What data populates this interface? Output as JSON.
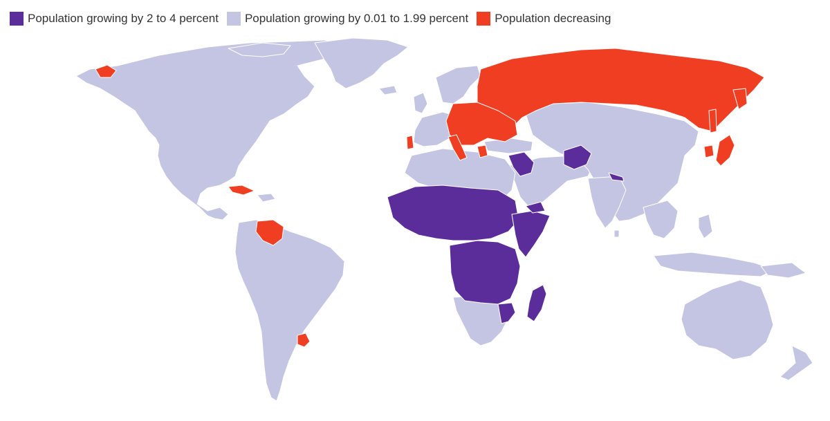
{
  "legend": {
    "items": [
      {
        "label": "Population growing by 2 to 4 percent",
        "category": "high_growth",
        "color": "#5b2d9a"
      },
      {
        "label": "Population growing by 0.01 to 1.99 percent",
        "category": "low_growth",
        "color": "#c4c5e3"
      },
      {
        "label": "Population decreasing",
        "category": "decreasing",
        "color": "#f03e22"
      }
    ]
  },
  "map": {
    "projection": "world",
    "regions": {
      "high_growth": [
        "Mauritania",
        "Mali",
        "Niger",
        "Chad",
        "Sudan",
        "Nigeria",
        "Burkina Faso",
        "Guinea",
        "Senegal",
        "Ivory Coast",
        "Cameroon",
        "Central African Republic",
        "South Sudan",
        "Ethiopia",
        "Somalia",
        "Kenya",
        "Uganda",
        "Democratic Republic of the Congo",
        "Angola",
        "Zambia",
        "Tanzania",
        "Mozambique",
        "Madagascar",
        "Yemen",
        "Iraq",
        "Syria",
        "Afghanistan",
        "Pakistan"
      ],
      "decreasing": [
        "Russia",
        "Ukraine",
        "Poland",
        "Romania",
        "Hungary",
        "Bulgaria",
        "Serbia",
        "Italy",
        "Portugal",
        "Greece",
        "Lithuania",
        "Latvia",
        "Belarus",
        "Japan",
        "South Korea",
        "Cuba",
        "Venezuela",
        "Uruguay",
        "Alaska (Bering)"
      ]
    }
  }
}
